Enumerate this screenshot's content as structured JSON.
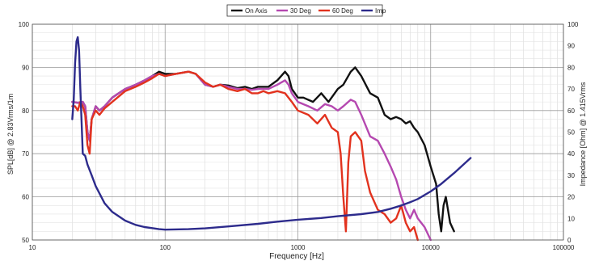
{
  "chart_data": {
    "type": "line",
    "xlabel": "Frequency [Hz]",
    "ylabel": "SPL[dB] @ 2.83Vrms/1m",
    "y2label": "Impedance [Ohm] @ 1.415Vrms",
    "xscale": "log",
    "xlim": [
      10,
      100000
    ],
    "ylim": [
      50,
      100
    ],
    "y2lim": [
      0,
      100
    ],
    "x_ticks": [
      {
        "value": 10,
        "label": "10"
      },
      {
        "value": 100,
        "label": "100"
      },
      {
        "value": 1000,
        "label": "1000"
      },
      {
        "value": 10000,
        "label": "10000"
      },
      {
        "value": 100000,
        "label": "100000"
      }
    ],
    "y_ticks": [
      {
        "value": 50,
        "label": "50"
      },
      {
        "value": 60,
        "label": "60"
      },
      {
        "value": 70,
        "label": "70"
      },
      {
        "value": 80,
        "label": "80"
      },
      {
        "value": 90,
        "label": "90"
      },
      {
        "value": 100,
        "label": "100"
      }
    ],
    "y2_ticks": [
      {
        "value": 0,
        "label": "0"
      },
      {
        "value": 10,
        "label": "10"
      },
      {
        "value": 20,
        "label": "20"
      },
      {
        "value": 30,
        "label": "30"
      },
      {
        "value": 40,
        "label": "40"
      },
      {
        "value": 50,
        "label": "50"
      },
      {
        "value": 60,
        "label": "60"
      },
      {
        "value": 70,
        "label": "70"
      },
      {
        "value": 80,
        "label": "80"
      },
      {
        "value": 90,
        "label": "90"
      },
      {
        "value": 100,
        "label": "100"
      }
    ],
    "grid": true,
    "legend_position": "top-center",
    "series": [
      {
        "name": "On Axis",
        "color": "#111111",
        "axis": "left",
        "points": [
          [
            20,
            82
          ],
          [
            22,
            81.8
          ],
          [
            24,
            82
          ],
          [
            25,
            81
          ],
          [
            26,
            75
          ],
          [
            27,
            73
          ],
          [
            28,
            78
          ],
          [
            30,
            81
          ],
          [
            32,
            80
          ],
          [
            35,
            81
          ],
          [
            40,
            83
          ],
          [
            50,
            85
          ],
          [
            60,
            86
          ],
          [
            70,
            87
          ],
          [
            80,
            88
          ],
          [
            90,
            89
          ],
          [
            100,
            88.5
          ],
          [
            120,
            88.5
          ],
          [
            150,
            89
          ],
          [
            170,
            88.5
          ],
          [
            200,
            86
          ],
          [
            230,
            85.5
          ],
          [
            260,
            86
          ],
          [
            300,
            85.8
          ],
          [
            350,
            85.2
          ],
          [
            400,
            85.5
          ],
          [
            450,
            85
          ],
          [
            500,
            85.5
          ],
          [
            600,
            85.5
          ],
          [
            700,
            87
          ],
          [
            800,
            89
          ],
          [
            850,
            88
          ],
          [
            900,
            85
          ],
          [
            1000,
            83
          ],
          [
            1100,
            83
          ],
          [
            1300,
            82
          ],
          [
            1500,
            84
          ],
          [
            1700,
            82
          ],
          [
            2000,
            85
          ],
          [
            2200,
            86
          ],
          [
            2500,
            89
          ],
          [
            2700,
            90
          ],
          [
            3000,
            88
          ],
          [
            3500,
            84
          ],
          [
            4000,
            83
          ],
          [
            4500,
            79
          ],
          [
            5000,
            78
          ],
          [
            5500,
            78.5
          ],
          [
            6000,
            78
          ],
          [
            6500,
            77
          ],
          [
            7000,
            77.5
          ],
          [
            7500,
            76
          ],
          [
            8000,
            75
          ],
          [
            9000,
            72
          ],
          [
            10000,
            67
          ],
          [
            11000,
            63
          ],
          [
            11500,
            56
          ],
          [
            12000,
            52
          ],
          [
            12500,
            58
          ],
          [
            13000,
            60
          ],
          [
            14000,
            54
          ],
          [
            15000,
            52
          ]
        ]
      },
      {
        "name": "30 Deg",
        "color": "#b548b0",
        "axis": "left",
        "points": [
          [
            20,
            82
          ],
          [
            22,
            81.8
          ],
          [
            24,
            82
          ],
          [
            25,
            81
          ],
          [
            26,
            75
          ],
          [
            27,
            73
          ],
          [
            28,
            78
          ],
          [
            30,
            81
          ],
          [
            32,
            80
          ],
          [
            35,
            81
          ],
          [
            40,
            83
          ],
          [
            50,
            85
          ],
          [
            60,
            86
          ],
          [
            70,
            87
          ],
          [
            80,
            88
          ],
          [
            90,
            88.5
          ],
          [
            100,
            88
          ],
          [
            120,
            88.5
          ],
          [
            150,
            89
          ],
          [
            170,
            88.5
          ],
          [
            200,
            86
          ],
          [
            230,
            85.5
          ],
          [
            260,
            86
          ],
          [
            300,
            85.5
          ],
          [
            350,
            85
          ],
          [
            400,
            85
          ],
          [
            450,
            84.8
          ],
          [
            500,
            85
          ],
          [
            600,
            85
          ],
          [
            700,
            86
          ],
          [
            800,
            87
          ],
          [
            850,
            86
          ],
          [
            900,
            84
          ],
          [
            1000,
            82
          ],
          [
            1200,
            81
          ],
          [
            1400,
            80
          ],
          [
            1600,
            81.5
          ],
          [
            1800,
            81
          ],
          [
            2000,
            80
          ],
          [
            2200,
            81
          ],
          [
            2500,
            82.5
          ],
          [
            2700,
            82
          ],
          [
            3000,
            79
          ],
          [
            3500,
            74
          ],
          [
            4000,
            73
          ],
          [
            4500,
            70
          ],
          [
            5000,
            67
          ],
          [
            5500,
            64
          ],
          [
            6000,
            60
          ],
          [
            6500,
            57
          ],
          [
            7000,
            55
          ],
          [
            7500,
            57
          ],
          [
            8000,
            55
          ],
          [
            9000,
            53
          ],
          [
            10000,
            50
          ]
        ]
      },
      {
        "name": "60 Deg",
        "color": "#e2321e",
        "axis": "left",
        "points": [
          [
            20,
            81
          ],
          [
            21,
            81
          ],
          [
            22,
            80
          ],
          [
            23,
            82
          ],
          [
            24,
            81
          ],
          [
            25,
            79
          ],
          [
            26,
            72
          ],
          [
            27,
            70
          ],
          [
            28,
            78
          ],
          [
            30,
            80
          ],
          [
            32,
            79
          ],
          [
            35,
            80.5
          ],
          [
            40,
            82
          ],
          [
            50,
            84.5
          ],
          [
            60,
            85.5
          ],
          [
            70,
            86.5
          ],
          [
            80,
            87.5
          ],
          [
            90,
            88.5
          ],
          [
            100,
            88
          ],
          [
            120,
            88.5
          ],
          [
            150,
            89
          ],
          [
            170,
            88.5
          ],
          [
            200,
            86.5
          ],
          [
            230,
            85.5
          ],
          [
            260,
            86
          ],
          [
            300,
            85
          ],
          [
            350,
            84.5
          ],
          [
            400,
            85
          ],
          [
            450,
            84
          ],
          [
            500,
            84
          ],
          [
            550,
            84.5
          ],
          [
            600,
            84
          ],
          [
            700,
            84.5
          ],
          [
            800,
            84
          ],
          [
            900,
            82
          ],
          [
            1000,
            80
          ],
          [
            1200,
            79
          ],
          [
            1400,
            77
          ],
          [
            1600,
            79
          ],
          [
            1800,
            76
          ],
          [
            2000,
            75
          ],
          [
            2100,
            70
          ],
          [
            2200,
            60
          ],
          [
            2300,
            52
          ],
          [
            2400,
            68
          ],
          [
            2500,
            74
          ],
          [
            2700,
            75
          ],
          [
            3000,
            73
          ],
          [
            3200,
            66
          ],
          [
            3500,
            61
          ],
          [
            4000,
            57
          ],
          [
            4500,
            56
          ],
          [
            5000,
            54
          ],
          [
            5500,
            55
          ],
          [
            6000,
            58
          ],
          [
            6500,
            54
          ],
          [
            7000,
            52
          ],
          [
            7500,
            53
          ],
          [
            8000,
            50
          ]
        ]
      },
      {
        "name": "Imp",
        "color": "#2d2b8c",
        "axis": "right",
        "points": [
          [
            20,
            56
          ],
          [
            20.5,
            65
          ],
          [
            21,
            82
          ],
          [
            21.5,
            92
          ],
          [
            22,
            94
          ],
          [
            22.5,
            88
          ],
          [
            23,
            70
          ],
          [
            24,
            40
          ],
          [
            25,
            39
          ],
          [
            26,
            35
          ],
          [
            28,
            30
          ],
          [
            30,
            25
          ],
          [
            35,
            17
          ],
          [
            40,
            13
          ],
          [
            50,
            9
          ],
          [
            60,
            7
          ],
          [
            70,
            6
          ],
          [
            80,
            5.5
          ],
          [
            90,
            5
          ],
          [
            100,
            4.8
          ],
          [
            150,
            5
          ],
          [
            200,
            5.4
          ],
          [
            300,
            6.3
          ],
          [
            500,
            7.5
          ],
          [
            700,
            8.5
          ],
          [
            1000,
            9.4
          ],
          [
            1500,
            10.2
          ],
          [
            2000,
            11
          ],
          [
            3000,
            12
          ],
          [
            4000,
            13
          ],
          [
            5000,
            14.5
          ],
          [
            6000,
            16
          ],
          [
            7000,
            17.5
          ],
          [
            8000,
            19
          ],
          [
            10000,
            22.5
          ],
          [
            12000,
            26
          ],
          [
            15000,
            31
          ],
          [
            20000,
            38
          ]
        ]
      }
    ]
  }
}
